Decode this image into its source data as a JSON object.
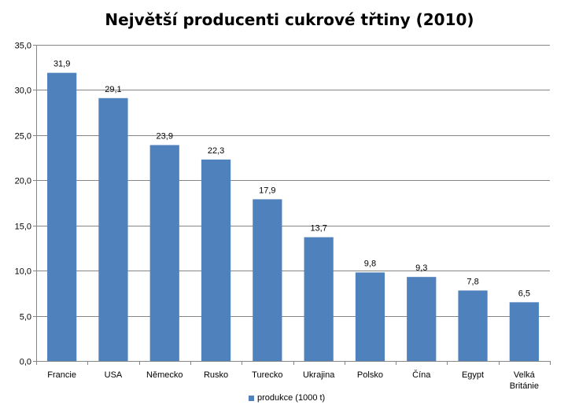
{
  "chart_data": {
    "type": "bar",
    "title": "Největší producenti cukrové třtiny (2010)",
    "categories": [
      "Francie",
      "USA",
      "Německo",
      "Rusko",
      "Turecko",
      "Ukrajina",
      "Polsko",
      "Čína",
      "Egypt",
      "Velká Británie"
    ],
    "category_lines": [
      [
        "Francie"
      ],
      [
        "USA"
      ],
      [
        "Německo"
      ],
      [
        "Rusko"
      ],
      [
        "Turecko"
      ],
      [
        "Ukrajina"
      ],
      [
        "Polsko"
      ],
      [
        "Čína"
      ],
      [
        "Egypt"
      ],
      [
        "Velká",
        "Británie"
      ]
    ],
    "series": [
      {
        "name": "produkce (1000 t)",
        "values": [
          31.9,
          29.1,
          23.9,
          22.3,
          17.9,
          13.7,
          9.8,
          9.3,
          7.8,
          6.5
        ],
        "color": "#4f81bd"
      }
    ],
    "data_labels": [
      "31,9",
      "29,1",
      "23,9",
      "22,3",
      "17,9",
      "13,7",
      "9,8",
      "9,3",
      "7,8",
      "6,5"
    ],
    "ylim": [
      0,
      35
    ],
    "yticks": [
      "0,0",
      "5,0",
      "10,0",
      "15,0",
      "20,0",
      "25,0",
      "30,0",
      "35,0"
    ],
    "grid": true,
    "legend_position": "bottom"
  }
}
